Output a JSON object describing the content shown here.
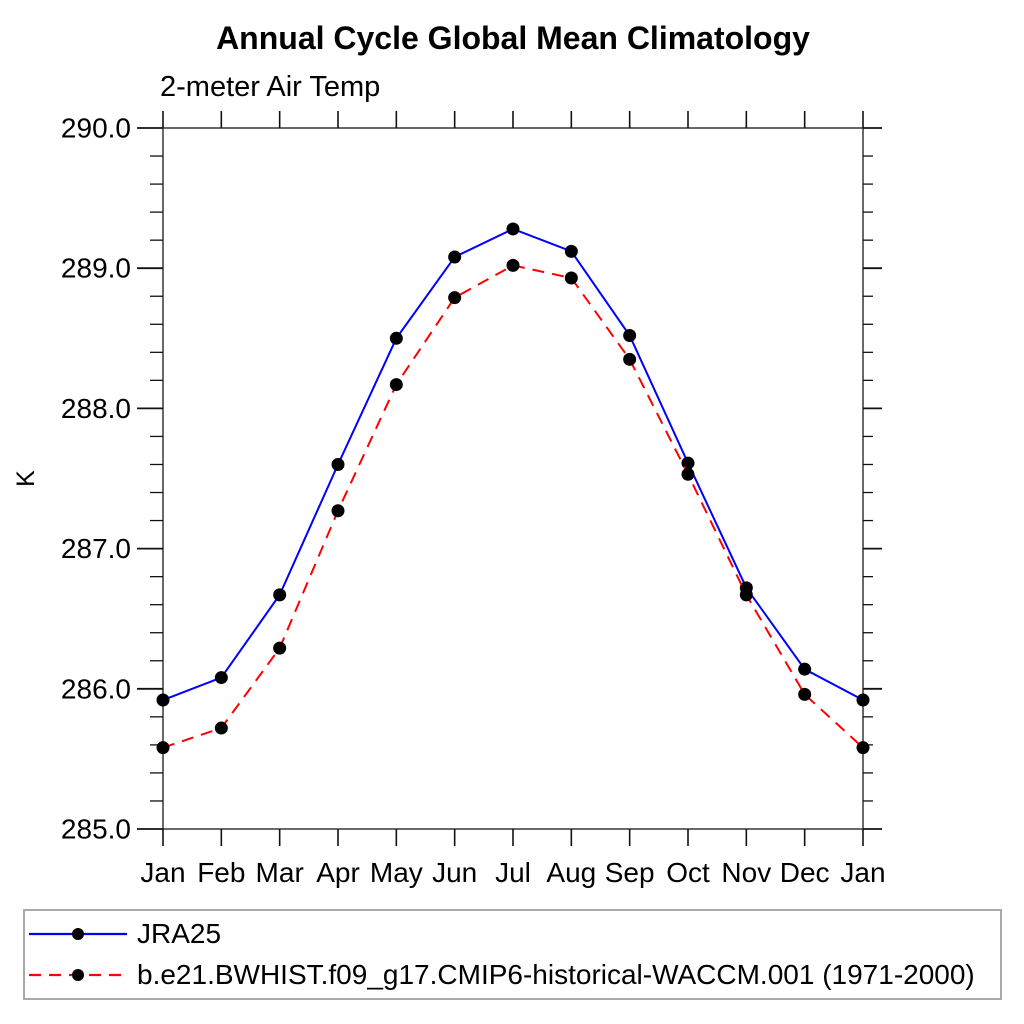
{
  "chart_data": {
    "type": "line",
    "title": "Annual Cycle Global Mean Climatology",
    "subtitle": "2-meter Air Temp",
    "ylabel": "K",
    "categories": [
      "Jan",
      "Feb",
      "Mar",
      "Apr",
      "May",
      "Jun",
      "Jul",
      "Aug",
      "Sep",
      "Oct",
      "Nov",
      "Dec",
      "Jan"
    ],
    "series": [
      {
        "name": "JRA25",
        "color": "#0000ff",
        "line_style": "solid",
        "marker": "filled-circle",
        "marker_color": "#000000",
        "values": [
          285.92,
          286.08,
          286.67,
          287.6,
          288.5,
          289.08,
          289.28,
          289.12,
          288.52,
          287.61,
          286.72,
          286.14,
          285.92
        ]
      },
      {
        "name": "b.e21.BWHIST.f09_g17.CMIP6-historical-WACCM.001 (1971-2000)",
        "color": "#ff0000",
        "line_style": "dashed",
        "marker": "filled-circle",
        "marker_color": "#000000",
        "values": [
          285.58,
          285.72,
          286.29,
          287.27,
          288.17,
          288.79,
          289.02,
          288.93,
          288.35,
          287.53,
          286.67,
          285.96,
          285.58
        ]
      }
    ],
    "ylim": [
      285.0,
      290.0
    ],
    "ytick_interval": 1.0,
    "ytick_minor_interval": 0.2,
    "ytick_label_decimals": 1,
    "grid": false,
    "axis_color": "#444444",
    "tick_color": "#111111",
    "legend_position": "bottom-left-box"
  }
}
